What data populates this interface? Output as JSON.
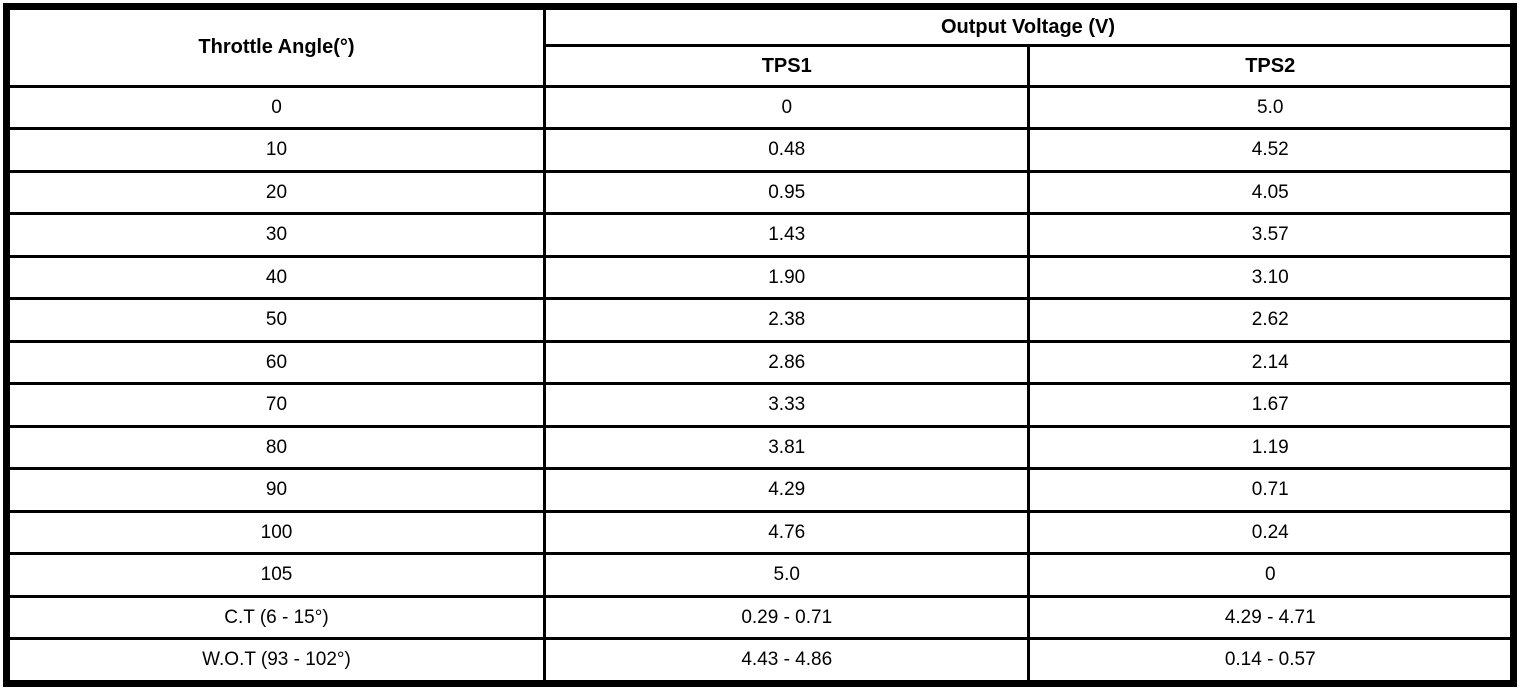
{
  "table": {
    "col1_header": "Throttle Angle(°)",
    "group_header": "Output Voltage (V)",
    "sub_headers": [
      "TPS1",
      "TPS2"
    ],
    "rows": [
      {
        "angle": "0",
        "tps1": "0",
        "tps2": "5.0"
      },
      {
        "angle": "10",
        "tps1": "0.48",
        "tps2": "4.52"
      },
      {
        "angle": "20",
        "tps1": "0.95",
        "tps2": "4.05"
      },
      {
        "angle": "30",
        "tps1": "1.43",
        "tps2": "3.57"
      },
      {
        "angle": "40",
        "tps1": "1.90",
        "tps2": "3.10"
      },
      {
        "angle": "50",
        "tps1": "2.38",
        "tps2": "2.62"
      },
      {
        "angle": "60",
        "tps1": "2.86",
        "tps2": "2.14"
      },
      {
        "angle": "70",
        "tps1": "3.33",
        "tps2": "1.67"
      },
      {
        "angle": "80",
        "tps1": "3.81",
        "tps2": "1.19"
      },
      {
        "angle": "90",
        "tps1": "4.29",
        "tps2": "0.71"
      },
      {
        "angle": "100",
        "tps1": "4.76",
        "tps2": "0.24"
      },
      {
        "angle": "105",
        "tps1": "5.0",
        "tps2": "0"
      },
      {
        "angle": "C.T (6 - 15°)",
        "tps1": "0.29 - 0.71",
        "tps2": "4.29 - 4.71"
      },
      {
        "angle": "W.O.T (93 - 102°)",
        "tps1": "4.43 - 4.86",
        "tps2": "0.14 - 0.57"
      }
    ],
    "colors": {
      "border": "#000000",
      "background": "#ffffff",
      "text": "#000000"
    }
  }
}
